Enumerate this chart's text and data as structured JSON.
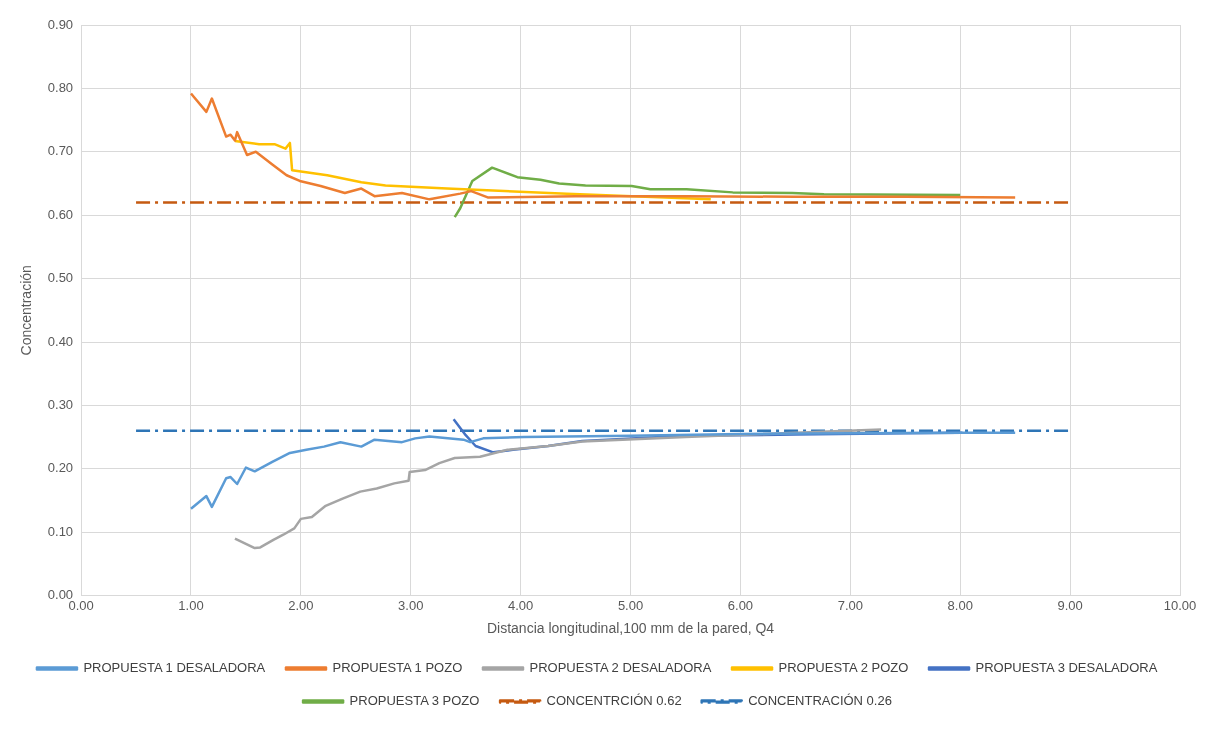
{
  "chart_data": {
    "type": "line",
    "xlabel": "Distancia longitudinal,100 mm de la pared, Q4",
    "ylabel": "Concentración",
    "xlim": [
      0,
      10
    ],
    "ylim": [
      0,
      0.9
    ],
    "xticks": [
      {
        "value": 0,
        "label": "0.00"
      },
      {
        "value": 1,
        "label": "1.00"
      },
      {
        "value": 2,
        "label": "2.00"
      },
      {
        "value": 3,
        "label": "3.00"
      },
      {
        "value": 4,
        "label": "4.00"
      },
      {
        "value": 5,
        "label": "5.00"
      },
      {
        "value": 6,
        "label": "6.00"
      },
      {
        "value": 7,
        "label": "7.00"
      },
      {
        "value": 8,
        "label": "8.00"
      },
      {
        "value": 9,
        "label": "9.00"
      },
      {
        "value": 10,
        "label": "10.00"
      }
    ],
    "yticks": [
      {
        "value": 0,
        "label": "0.00"
      },
      {
        "value": 0.1,
        "label": "0.10"
      },
      {
        "value": 0.2,
        "label": "0.20"
      },
      {
        "value": 0.3,
        "label": "0.30"
      },
      {
        "value": 0.4,
        "label": "0.40"
      },
      {
        "value": 0.5,
        "label": "0.50"
      },
      {
        "value": 0.6,
        "label": "0.60"
      },
      {
        "value": 0.7,
        "label": "0.70"
      },
      {
        "value": 0.8,
        "label": "0.80"
      },
      {
        "value": 0.9,
        "label": "0.90"
      }
    ],
    "grid": true,
    "legend": "bottom",
    "marker": "none",
    "series": [
      {
        "name": "PROPUESTA 1 DESALADORA",
        "color": "#5b9bd5",
        "x": [
          1.0,
          1.14,
          1.19,
          1.32,
          1.36,
          1.42,
          1.5,
          1.58,
          1.74,
          1.9,
          2.05,
          2.21,
          2.36,
          2.55,
          2.67,
          2.92,
          3.04,
          3.17,
          3.48,
          3.54,
          3.66,
          4.03,
          5.0,
          6.0,
          7.0,
          8.0,
          8.5
        ],
        "values": [
          0.137,
          0.157,
          0.14,
          0.185,
          0.187,
          0.176,
          0.202,
          0.196,
          0.211,
          0.225,
          0.23,
          0.235,
          0.242,
          0.235,
          0.246,
          0.242,
          0.248,
          0.251,
          0.246,
          0.242,
          0.248,
          0.25,
          0.252,
          0.255,
          0.256,
          0.257,
          0.257
        ]
      },
      {
        "name": "PROPUESTA 1 POZO",
        "color": "#ed7d31",
        "x": [
          1.0,
          1.14,
          1.19,
          1.32,
          1.36,
          1.4,
          1.42,
          1.51,
          1.59,
          1.74,
          1.87,
          1.99,
          2.18,
          2.4,
          2.55,
          2.67,
          2.92,
          3.17,
          3.45,
          3.55,
          3.7,
          4.5,
          5.5,
          6.5,
          7.5,
          8.5
        ],
        "values": [
          0.792,
          0.763,
          0.784,
          0.724,
          0.727,
          0.718,
          0.731,
          0.695,
          0.7,
          0.68,
          0.663,
          0.654,
          0.646,
          0.635,
          0.642,
          0.63,
          0.635,
          0.625,
          0.634,
          0.638,
          0.628,
          0.63,
          0.63,
          0.629,
          0.629,
          0.628
        ]
      },
      {
        "name": "PROPUESTA 2 DESALADORA",
        "color": "#a5a5a5",
        "x": [
          1.4,
          1.58,
          1.63,
          1.75,
          1.84,
          1.94,
          2.0,
          2.1,
          2.22,
          2.38,
          2.54,
          2.69,
          2.85,
          2.98,
          2.99,
          3.13,
          3.26,
          3.4,
          3.63,
          3.88,
          4.25,
          4.56,
          5.5,
          7.28
        ],
        "values": [
          0.09,
          0.075,
          0.076,
          0.088,
          0.096,
          0.106,
          0.121,
          0.124,
          0.141,
          0.153,
          0.164,
          0.169,
          0.177,
          0.181,
          0.195,
          0.198,
          0.209,
          0.217,
          0.219,
          0.23,
          0.236,
          0.243,
          0.25,
          0.262
        ]
      },
      {
        "name": "PROPUESTA 2 POZO",
        "color": "#ffc000",
        "x": [
          1.4,
          1.62,
          1.76,
          1.86,
          1.9,
          1.92,
          2.24,
          2.55,
          2.77,
          3.33,
          4.42,
          5.73
        ],
        "values": [
          0.717,
          0.712,
          0.712,
          0.705,
          0.714,
          0.671,
          0.663,
          0.652,
          0.647,
          0.642,
          0.634,
          0.625
        ]
      },
      {
        "name": "PROPUESTA 3 DESALADORA",
        "color": "#4472c4",
        "x": [
          3.39,
          3.5,
          3.59,
          3.75,
          3.93,
          4.25,
          4.56,
          5.5,
          6.5,
          7.5,
          8.02
        ],
        "values": [
          0.278,
          0.253,
          0.236,
          0.226,
          0.23,
          0.236,
          0.244,
          0.252,
          0.254,
          0.256,
          0.257
        ]
      },
      {
        "name": "PROPUESTA 3 POZO",
        "color": "#70ad47",
        "x": [
          3.4,
          3.45,
          3.56,
          3.74,
          3.97,
          4.18,
          4.35,
          4.59,
          5.01,
          5.18,
          5.51,
          5.93,
          6.47,
          6.76,
          8.0
        ],
        "values": [
          0.597,
          0.611,
          0.654,
          0.675,
          0.66,
          0.656,
          0.65,
          0.647,
          0.646,
          0.641,
          0.641,
          0.636,
          0.635,
          0.633,
          0.632
        ]
      },
      {
        "name": "CONCENTRCIÓN 0.62",
        "color": "#c55a11",
        "line_style": "dashed",
        "x": [
          0.5,
          9.0
        ],
        "values": [
          0.62,
          0.62
        ]
      },
      {
        "name": "CONCENTRACIÓN 0.26",
        "color": "#2e75b6",
        "line_style": "dashed",
        "x": [
          0.5,
          9.0
        ],
        "values": [
          0.26,
          0.26
        ]
      }
    ]
  }
}
